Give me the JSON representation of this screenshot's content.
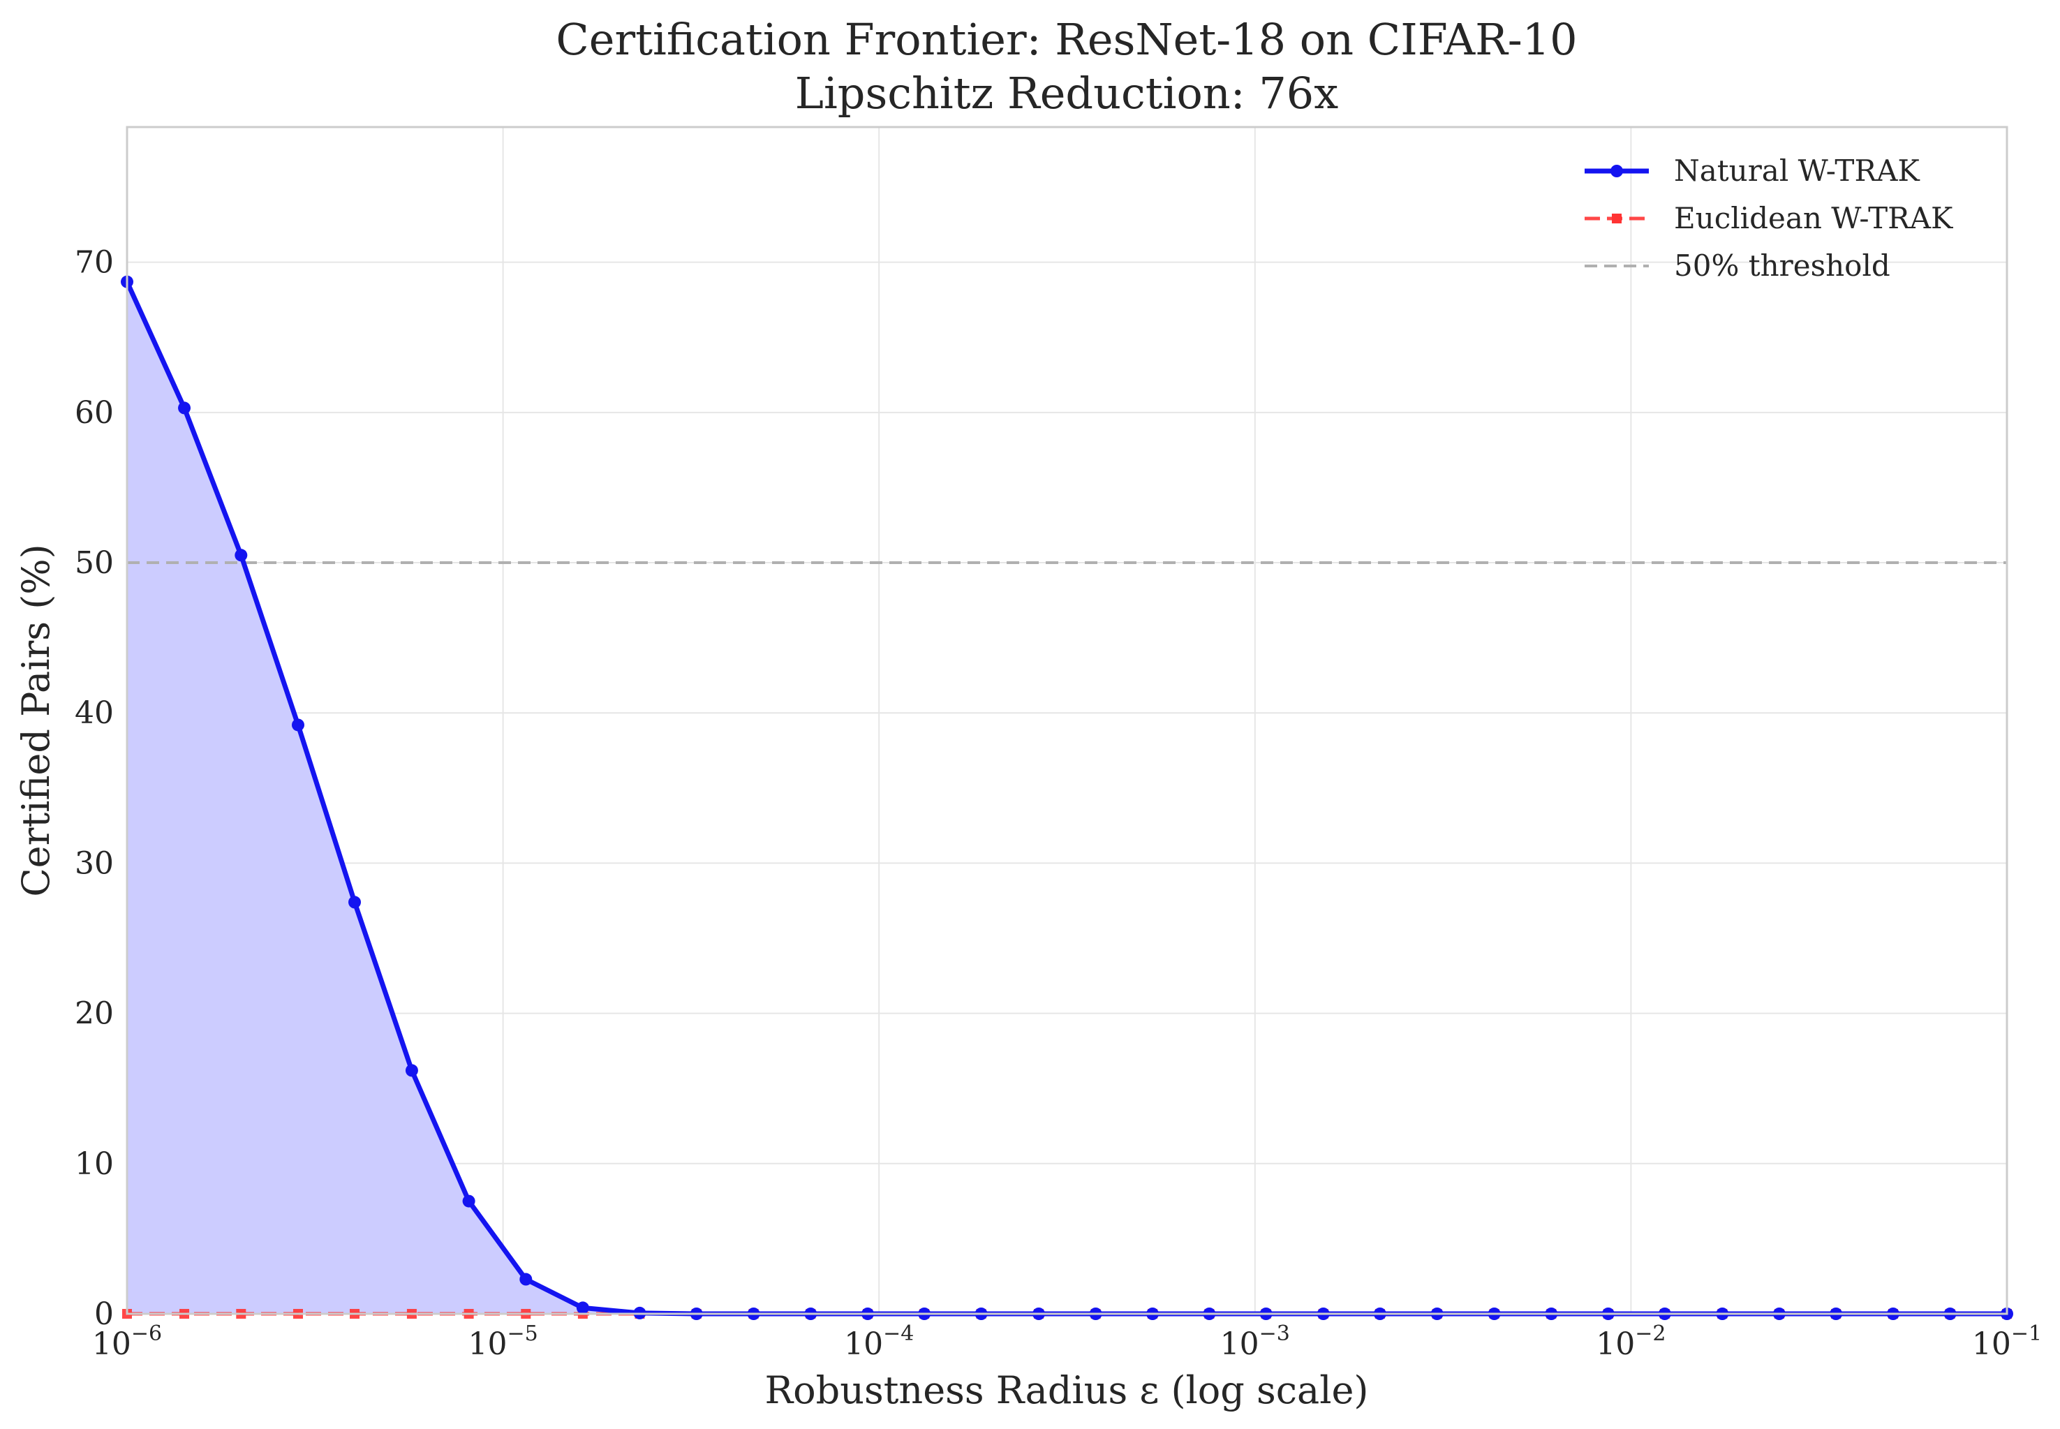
{
  "chart_data": {
    "type": "line",
    "title": "Certification Frontier: ResNet-18 on CIFAR-10",
    "subtitle": "Lipschitz Reduction: 76x",
    "xlabel": "Robustness Radius ε (log scale)",
    "ylabel": "Certified Pairs (%)",
    "x_scale": "log",
    "xlim": [
      1e-06,
      0.1
    ],
    "ylim": [
      0,
      79
    ],
    "grid": true,
    "legend_position": "top-right",
    "x_ticks": [
      {
        "value": 1e-06,
        "base": "10",
        "exp": "−6"
      },
      {
        "value": 1e-05,
        "base": "10",
        "exp": "−5"
      },
      {
        "value": 0.0001,
        "base": "10",
        "exp": "−4"
      },
      {
        "value": 0.001,
        "base": "10",
        "exp": "−3"
      },
      {
        "value": 0.01,
        "base": "10",
        "exp": "−2"
      },
      {
        "value": 0.1,
        "base": "10",
        "exp": "−1"
      }
    ],
    "y_ticks": [
      {
        "value": 0,
        "label": "0"
      },
      {
        "value": 10,
        "label": "10"
      },
      {
        "value": 20,
        "label": "20"
      },
      {
        "value": 30,
        "label": "30"
      },
      {
        "value": 40,
        "label": "40"
      },
      {
        "value": 50,
        "label": "50"
      },
      {
        "value": 60,
        "label": "60"
      },
      {
        "value": 70,
        "label": "70"
      }
    ],
    "x": [
      1e-06,
      1.42e-06,
      2.01e-06,
      2.85e-06,
      4.03e-06,
      5.72e-06,
      8.11e-06,
      1.15e-05,
      1.63e-05,
      2.31e-05,
      3.27e-05,
      4.64e-05,
      6.58e-05,
      9.33e-05,
      0.000132,
      0.000187,
      0.000266,
      0.000377,
      0.000534,
      0.000756,
      0.00107,
      0.00152,
      0.00215,
      0.00305,
      0.00433,
      0.00614,
      0.0087,
      0.0123,
      0.0175,
      0.0248,
      0.0351,
      0.0498,
      0.0706,
      0.1
    ],
    "series": [
      {
        "name": "Natural W-TRAK",
        "color": "#1414f0",
        "marker": "circle",
        "line": "solid",
        "fill": "#ccccff",
        "values": [
          68.7,
          60.3,
          50.5,
          39.2,
          27.4,
          16.2,
          7.5,
          2.3,
          0.4,
          0.05,
          0,
          0,
          0,
          0,
          0,
          0,
          0,
          0,
          0,
          0,
          0,
          0,
          0,
          0,
          0,
          0,
          0,
          0,
          0,
          0,
          0,
          0,
          0,
          0
        ]
      },
      {
        "name": "Euclidean W-TRAK",
        "color": "#ff3333",
        "marker": "square",
        "line": "dashed",
        "values": [
          0,
          0,
          0,
          0,
          0,
          0,
          0,
          0,
          0,
          0,
          0,
          0,
          0,
          0,
          0,
          0,
          0,
          0,
          0,
          0,
          0,
          0,
          0,
          0,
          0,
          0,
          0,
          0,
          0,
          0,
          0,
          0,
          0,
          0
        ]
      }
    ],
    "reference_lines": [
      {
        "name": "50% threshold",
        "y": 50,
        "color": "#b0b0b0",
        "line": "dashed"
      }
    ]
  }
}
